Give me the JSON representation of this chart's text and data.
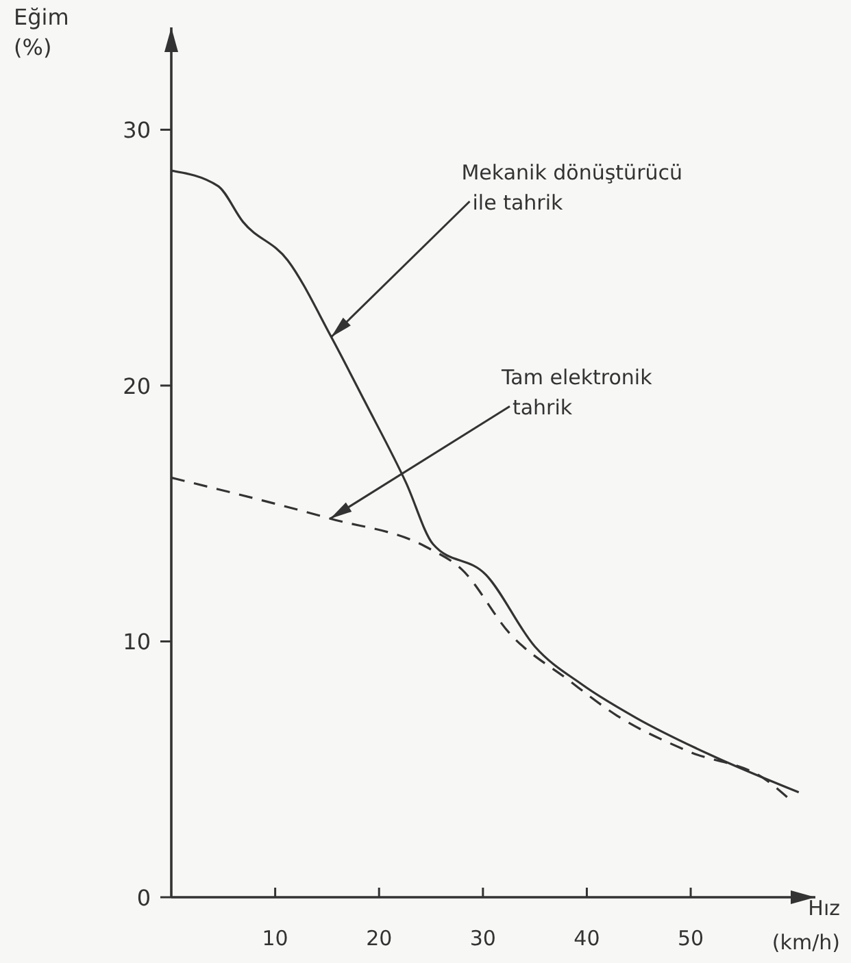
{
  "chart_data": {
    "type": "line",
    "xlabel": "Hız\n(km/h)",
    "ylabel": "Eğim\n(%)",
    "xlim": [
      0,
      62
    ],
    "ylim": [
      0,
      34
    ],
    "xticks": [
      10,
      20,
      30,
      40,
      50
    ],
    "yticks": [
      0,
      10,
      20,
      30
    ],
    "grid": false,
    "marker": "none",
    "series": [
      {
        "color": "#333333",
        "line_style": "solid",
        "x": [
          0,
          4.5,
          6.9,
          11.2,
          15.4,
          18.6,
          22.6,
          25.2,
          30.3,
          35,
          39.6,
          44.8,
          51.7,
          60.4
        ],
        "values": [
          28.4,
          27.8,
          26.4,
          24.9,
          21.9,
          19.4,
          16.2,
          13.8,
          12.6,
          9.8,
          8.3,
          7.0,
          5.6,
          4.1
        ]
      },
      {
        "color": "#333333",
        "line_style": "dashed",
        "x": [
          0,
          15.3,
          24.5,
          28,
          32.6,
          38.2,
          42.9,
          49.8,
          57.2,
          59.6
        ],
        "values": [
          16.4,
          14.8,
          13.7,
          12.8,
          10.3,
          8.5,
          7.1,
          5.7,
          4.6,
          3.8
        ]
      }
    ],
    "annotations": [
      {
        "text": "Mekanik dönüştürücü\nile tahrik",
        "x": 15.4,
        "y": 21.9
      },
      {
        "text": "Tam elektronik\ntahrik",
        "x": 15.3,
        "y": 14.8
      }
    ]
  }
}
